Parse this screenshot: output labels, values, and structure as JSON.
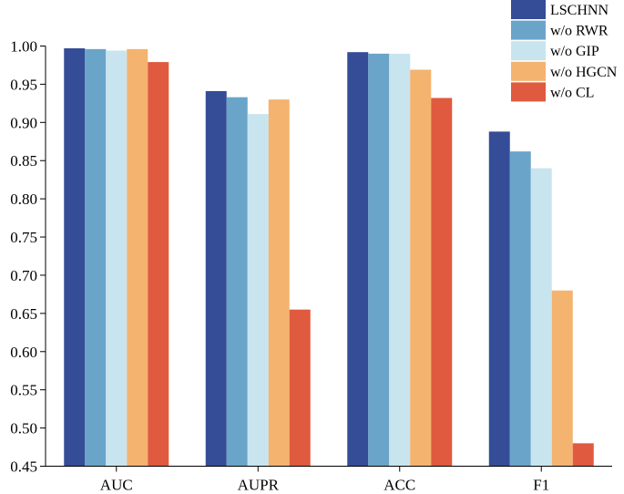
{
  "chart_data": {
    "type": "bar",
    "categories": [
      "AUC",
      "AUPR",
      "ACC",
      "F1"
    ],
    "series": [
      {
        "name": "LSCHNN",
        "color": "#354c96",
        "values": [
          0.997,
          0.941,
          0.992,
          0.888
        ]
      },
      {
        "name": "w/o RWR",
        "color": "#6aa4c9",
        "values": [
          0.996,
          0.933,
          0.99,
          0.862
        ]
      },
      {
        "name": "w/o GIP",
        "color": "#c8e5ef",
        "values": [
          0.994,
          0.911,
          0.99,
          0.84
        ]
      },
      {
        "name": "w/o HGCN",
        "color": "#f4b36e",
        "values": [
          0.996,
          0.93,
          0.969,
          0.68
        ]
      },
      {
        "name": "w/o CL",
        "color": "#df5a3e",
        "values": [
          0.979,
          0.655,
          0.932,
          0.48
        ]
      }
    ],
    "yticks": [
      "0.45",
      "0.50",
      "0.55",
      "0.60",
      "0.65",
      "0.70",
      "0.75",
      "0.80",
      "0.85",
      "0.90",
      "0.95",
      "1.00"
    ],
    "ylim": [
      0.45,
      1.0
    ],
    "title": "",
    "xlabel": "",
    "ylabel": "",
    "grid": false,
    "legend_position": "top-right"
  }
}
